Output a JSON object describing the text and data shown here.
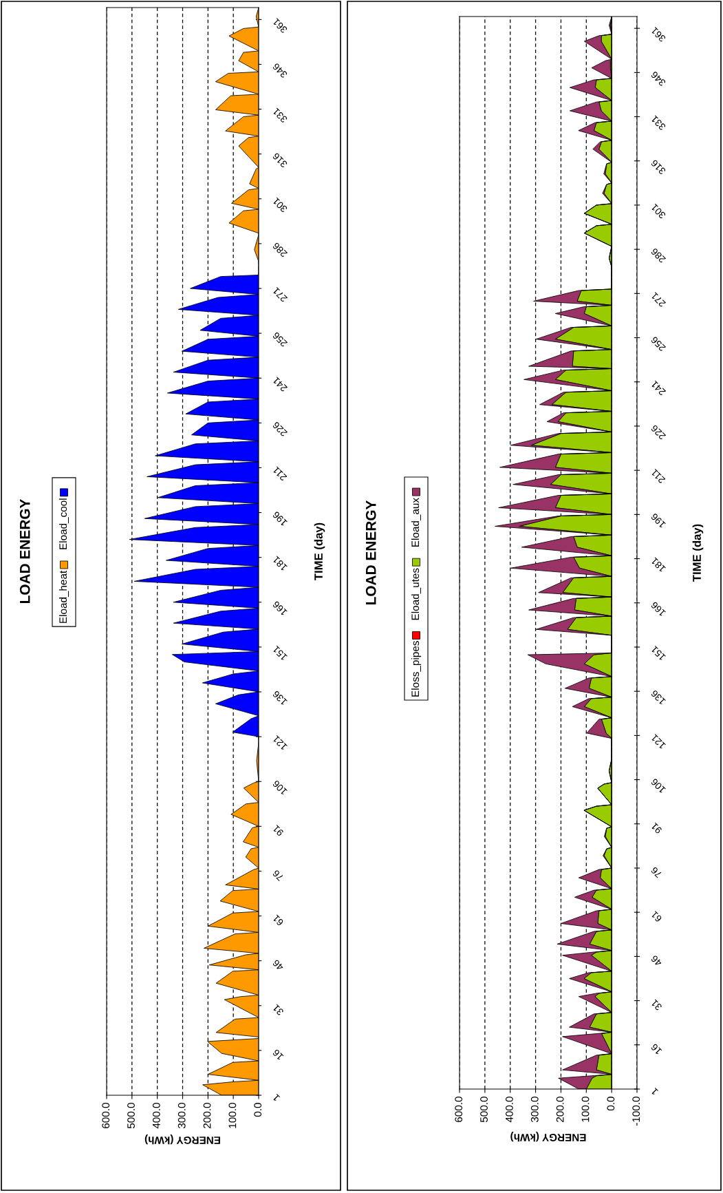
{
  "chart_data": [
    {
      "type": "area",
      "orientation": "horizontal",
      "title": "LOAD ENERGY",
      "xlabel": "ENERGY (kWh)",
      "ylabel": "TIME (day)",
      "xlim": [
        600,
        0
      ],
      "xticks": [
        {
          "value": 600,
          "label": "600.0"
        },
        {
          "value": 500,
          "label": "500.0"
        },
        {
          "value": 400,
          "label": "400.0"
        },
        {
          "value": 300,
          "label": "300.0"
        },
        {
          "value": 200,
          "label": "200.0"
        },
        {
          "value": 100,
          "label": "100.0"
        },
        {
          "value": 0,
          "label": "0.0"
        }
      ],
      "ylim": [
        1,
        365
      ],
      "yticks": [
        1,
        16,
        31,
        46,
        61,
        76,
        91,
        106,
        121,
        136,
        151,
        166,
        181,
        196,
        211,
        226,
        241,
        256,
        271,
        286,
        301,
        316,
        331,
        346,
        361
      ],
      "grid": "x",
      "legend": "left",
      "series": [
        {
          "name": "Eload_heat",
          "color": "#ff9900",
          "x": [
            1,
            4.5,
            5.5,
            6,
            8,
            12,
            12.5,
            15,
            19,
            20,
            20.5,
            22,
            26.5,
            27,
            33,
            34,
            34.5,
            38.5,
            42.5,
            43,
            44.6,
            48,
            48.5,
            50.2,
            55,
            55.5,
            57.6,
            62,
            62.5,
            66,
            69.5,
            70,
            71.4,
            76.5,
            77,
            80.7,
            83.5,
            84,
            85.8,
            90.5,
            91,
            95,
            98.5,
            99,
            103.8,
            105.5,
            106,
            113,
            119,
            280,
            284,
            289,
            289.5,
            292.9,
            297,
            297.5,
            299.5,
            304,
            304.5,
            306,
            311,
            311.5,
            318.7,
            321.5,
            322,
            323.7,
            328.5,
            329,
            330.8,
            335.5,
            336,
            340.2,
            343,
            343.5,
            347.2,
            350,
            350.5,
            355.5,
            358,
            358.5,
            362,
            365
          ],
          "values": [
            146,
            221,
            100,
            0,
            200,
            102,
            0,
            146,
            202,
            0,
            0,
            168,
            93,
            0,
            135,
            72,
            0,
            168,
            102,
            0,
            195,
            51,
            0,
            216,
            93,
            0,
            200,
            102,
            0,
            152,
            102,
            0,
            131,
            20,
            0,
            51,
            30,
            0,
            61,
            25,
            0,
            109,
            50,
            0,
            59,
            20,
            0,
            8,
            0,
            0,
            17,
            0,
            0,
            117,
            60,
            0,
            107,
            40,
            0,
            36,
            10,
            0,
            79,
            40,
            0,
            131,
            60,
            0,
            170,
            110,
            0,
            170,
            120,
            0,
            79,
            60,
            0,
            117,
            60,
            0,
            10,
            0
          ]
        },
        {
          "name": "Eload_cool",
          "color": "#0000ff",
          "x": [
            121,
            122.5,
            127,
            128,
            132,
            135,
            136,
            139,
            142,
            143,
            146,
            148.5,
            149.5,
            152,
            156,
            157,
            159,
            163,
            164,
            166,
            170,
            171,
            173,
            177,
            178,
            180,
            184,
            185,
            187,
            191,
            192,
            194,
            198,
            199,
            201,
            205,
            206,
            208,
            212,
            213,
            215,
            219,
            220,
            222,
            226,
            227,
            229,
            233,
            234,
            236,
            240,
            241,
            243,
            247,
            248,
            250,
            254,
            255,
            257,
            261,
            262,
            264,
            268,
            269,
            271,
            275,
            275.5
          ],
          "values": [
            0,
            103,
            30,
            0,
            170,
            80,
            0,
            222,
            100,
            0,
            293,
            341,
            0,
            303,
            140,
            0,
            336,
            150,
            0,
            336,
            150,
            0,
            491,
            250,
            0,
            365,
            200,
            0,
            510,
            250,
            0,
            450,
            250,
            0,
            398,
            250,
            0,
            441,
            250,
            0,
            408,
            250,
            0,
            265,
            200,
            0,
            288,
            200,
            0,
            360,
            200,
            0,
            336,
            200,
            0,
            303,
            200,
            0,
            231,
            150,
            0,
            317,
            160,
            0,
            270,
            150,
            0
          ]
        }
      ]
    },
    {
      "type": "area",
      "orientation": "horizontal",
      "stacked": true,
      "title": "LOAD ENERGY",
      "xlabel": "ENERGY (kWh)",
      "ylabel": "TIME (day)",
      "xlim": [
        600,
        -100
      ],
      "xticks": [
        {
          "value": 600,
          "label": "600.0"
        },
        {
          "value": 500,
          "label": "500.0"
        },
        {
          "value": 400,
          "label": "400.0"
        },
        {
          "value": 300,
          "label": "300.0"
        },
        {
          "value": 200,
          "label": "200.0"
        },
        {
          "value": 100,
          "label": "100.0"
        },
        {
          "value": 0,
          "label": "0.0"
        },
        {
          "value": -100,
          "label": "-100.0"
        }
      ],
      "ylim": [
        1,
        365
      ],
      "yticks": [
        1,
        16,
        31,
        46,
        61,
        76,
        91,
        106,
        121,
        136,
        151,
        166,
        181,
        196,
        211,
        226,
        241,
        256,
        271,
        286,
        301,
        316,
        331,
        346,
        361
      ],
      "grid": "x",
      "legend": "left",
      "x": [
        1,
        4.7,
        5.5,
        6,
        7.5,
        12.5,
        13,
        18.8,
        19.8,
        20.3,
        22,
        26.5,
        27,
        32.4,
        33.5,
        34,
        38.5,
        40.5,
        41,
        46.4,
        47.5,
        48,
        50.2,
        54.5,
        55,
        57.2,
        61.5,
        62,
        66.1,
        68.5,
        69,
        72.7,
        75.5,
        76,
        80.2,
        82.5,
        83,
        86.7,
        89.5,
        90,
        95.6,
        97,
        97.5,
        103.1,
        104.5,
        105,
        109,
        113,
        120,
        121.8,
        126.5,
        127,
        130.8,
        133.5,
        134,
        137,
        140.5,
        141,
        145.3,
        148.4,
        149,
        155,
        157,
        161,
        161.5,
        163.6,
        167.5,
        168,
        169.5,
        174.5,
        175,
        177.8,
        181.5,
        182,
        184.9,
        188.5,
        189,
        192,
        195.5,
        196,
        198.3,
        202.5,
        203,
        206.2,
        209.5,
        210,
        212,
        216.5,
        217,
        219.5,
        223.5,
        224,
        227.5,
        230.5,
        231,
        233.3,
        237.5,
        238,
        241.8,
        245,
        245.5,
        246.3,
        251.5,
        252,
        255.5,
        259.5,
        260,
        264.2,
        266.5,
        267,
        268.4,
        272,
        272.5,
        280,
        283,
        287,
        291.5,
        294,
        294.5,
        298.2,
        301,
        301.5,
        305,
        308,
        308.5,
        311.6,
        315,
        315.5,
        320,
        322.5,
        323,
        326.3,
        329,
        329.5,
        333,
        336,
        336.5,
        340.9,
        343.5,
        344,
        347.6,
        350,
        350.5,
        356.6,
        358.5,
        359,
        362,
        365
      ],
      "series": [
        {
          "name": "Eloss_pipes",
          "color": "#ff0000",
          "values": [
            null,
            null,
            null,
            null,
            null,
            null,
            null,
            null,
            null,
            null,
            null,
            null,
            null,
            null,
            null,
            null,
            null,
            null,
            null,
            null,
            null,
            null,
            null,
            null,
            null,
            null,
            null,
            null,
            null,
            null,
            null,
            null,
            null,
            null,
            null,
            null,
            null,
            null,
            null,
            null,
            null,
            null,
            null,
            null,
            null,
            null,
            null,
            null,
            null,
            null,
            null,
            null,
            null,
            null,
            null,
            null,
            null,
            null,
            null,
            null,
            null,
            null,
            null,
            null,
            null,
            null,
            null,
            null,
            null,
            null,
            null,
            null,
            null,
            null,
            null,
            null,
            null,
            null,
            null,
            null,
            null,
            null,
            null,
            null,
            null,
            null,
            null,
            null,
            null,
            null,
            null,
            null,
            null,
            null,
            null,
            null,
            null,
            null,
            null,
            null,
            null,
            null,
            null,
            null,
            null,
            null,
            null,
            null,
            null,
            null,
            null,
            null,
            null,
            null,
            null,
            null,
            null,
            null,
            null,
            null,
            null,
            null,
            null,
            null,
            null,
            null,
            null,
            null,
            null,
            null,
            null,
            null,
            null,
            null,
            null,
            null,
            null,
            null,
            null,
            null,
            null,
            null,
            null,
            null,
            null,
            null,
            null,
            null
          ]
        },
        {
          "name": "Eload_utes",
          "color": "#99cc00",
          "values": [
            100,
            77,
            60,
            0,
            60,
            50,
            0,
            34,
            40,
            0,
            87,
            60,
            0,
            66,
            50,
            0,
            109,
            80,
            0,
            80,
            60,
            0,
            87,
            60,
            0,
            55,
            50,
            0,
            77,
            60,
            0,
            45,
            40,
            0,
            30,
            20,
            0,
            25,
            20,
            0,
            109,
            60,
            0,
            55,
            30,
            0,
            10,
            0,
            0,
            22,
            40,
            0,
            108,
            80,
            0,
            89,
            80,
            0,
            108,
            70,
            0,
            0,
            174,
            140,
            0,
            146,
            140,
            0,
            193,
            150,
            0,
            127,
            150,
            0,
            136,
            150,
            0,
            365,
            200,
            0,
            222,
            200,
            0,
            241,
            200,
            0,
            222,
            200,
            0,
            317,
            200,
            0,
            212,
            180,
            0,
            236,
            180,
            0,
            222,
            180,
            0,
            155,
            150,
            0,
            222,
            150,
            0,
            108,
            100,
            0,
            136,
            120,
            0,
            0,
            10,
            0,
            108,
            60,
            0,
            108,
            60,
            0,
            30,
            20,
            0,
            25,
            20,
            0,
            50,
            40,
            0,
            70,
            60,
            0,
            41,
            50,
            0,
            65,
            60,
            0,
            5,
            5,
            0,
            41,
            40,
            0,
            5,
            0
          ]
        },
        {
          "name": "Eload_aux",
          "color": "#993366",
          "values": [
            30,
            133,
            20,
            0,
            134,
            10,
            0,
            160,
            20,
            0,
            80,
            10,
            0,
            64,
            10,
            0,
            58,
            10,
            0,
            114,
            10,
            0,
            128,
            10,
            0,
            145,
            10,
            0,
            69,
            10,
            0,
            85,
            10,
            0,
            4,
            0,
            0,
            4,
            0,
            0,
            0,
            0,
            0,
            0,
            0,
            0,
            0,
            0,
            0,
            76,
            10,
            0,
            47,
            10,
            0,
            95,
            10,
            0,
            152,
            261,
            0,
            0,
            124,
            10,
            0,
            181,
            10,
            0,
            96,
            10,
            0,
            271,
            10,
            0,
            219,
            10,
            0,
            95,
            10,
            0,
            224,
            10,
            0,
            148,
            10,
            0,
            219,
            10,
            0,
            81,
            10,
            0,
            43,
            10,
            0,
            48,
            10,
            0,
            124,
            10,
            0,
            172,
            10,
            0,
            76,
            10,
            0,
            114,
            10,
            0,
            172,
            10,
            0,
            0,
            0,
            0,
            0,
            0,
            0,
            0,
            0,
            0,
            6,
            0,
            0,
            6,
            0,
            0,
            24,
            5,
            0,
            61,
            5,
            0,
            124,
            10,
            0,
            100,
            10,
            0,
            74,
            20,
            0,
            67,
            10,
            0,
            5,
            0
          ]
        }
      ]
    }
  ]
}
